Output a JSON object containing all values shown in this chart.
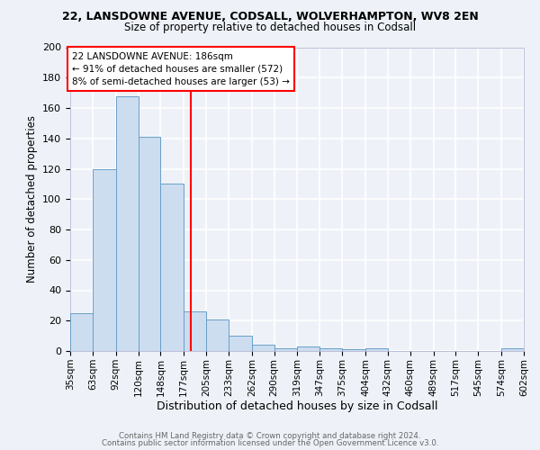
{
  "title_line1": "22, LANSDOWNE AVENUE, CODSALL, WOLVERHAMPTON, WV8 2EN",
  "title_line2": "Size of property relative to detached houses in Codsall",
  "xlabel": "Distribution of detached houses by size in Codsall",
  "ylabel": "Number of detached properties",
  "bin_edges": [
    35,
    63,
    92,
    120,
    148,
    177,
    205,
    233,
    262,
    290,
    319,
    347,
    375,
    404,
    432,
    460,
    489,
    517,
    545,
    574,
    602
  ],
  "bar_heights": [
    25,
    120,
    168,
    141,
    110,
    26,
    21,
    10,
    4,
    2,
    3,
    2,
    1,
    2,
    0,
    0,
    0,
    0,
    0,
    2
  ],
  "bar_color": "#ccddf0",
  "bar_edge_color": "#6a9fc8",
  "vline_x": 186,
  "vline_color": "red",
  "ylim": [
    0,
    200
  ],
  "yticks": [
    0,
    20,
    40,
    60,
    80,
    100,
    120,
    140,
    160,
    180,
    200
  ],
  "annotation_title": "22 LANSDOWNE AVENUE: 186sqm",
  "annotation_line1": "← 91% of detached houses are smaller (572)",
  "annotation_line2": "8% of semi-detached houses are larger (53) →",
  "annotation_box_color": "white",
  "annotation_box_edge": "red",
  "footer_line1": "Contains HM Land Registry data © Crown copyright and database right 2024.",
  "footer_line2": "Contains public sector information licensed under the Open Government Licence v3.0.",
  "background_color": "#eef2f8",
  "grid_color": "white",
  "plot_bg_color": "#eef2f8"
}
